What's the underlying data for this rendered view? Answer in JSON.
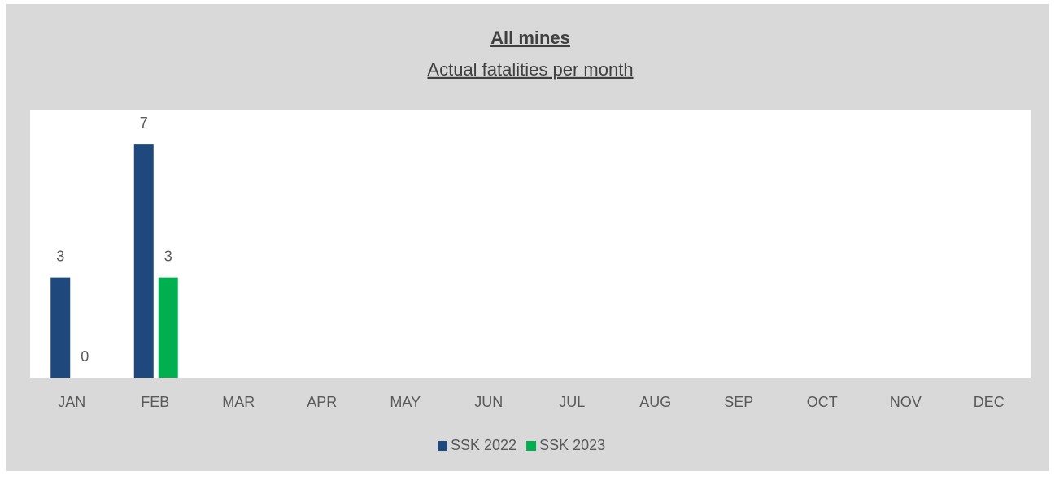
{
  "chart_data": {
    "type": "bar",
    "title": "All mines",
    "subtitle": "Actual fatalities per month",
    "categories": [
      "JAN",
      "FEB",
      "MAR",
      "APR",
      "MAY",
      "JUN",
      "JUL",
      "AUG",
      "SEP",
      "OCT",
      "NOV",
      "DEC"
    ],
    "series": [
      {
        "name": "SSK 2022",
        "color": "#1f497d",
        "values": [
          3,
          7,
          null,
          null,
          null,
          null,
          null,
          null,
          null,
          null,
          null,
          null
        ]
      },
      {
        "name": "SSK 2023",
        "color": "#00b050",
        "values": [
          0,
          3,
          null,
          null,
          null,
          null,
          null,
          null,
          null,
          null,
          null,
          null
        ]
      }
    ],
    "ylim": [
      0,
      8
    ],
    "legend": "bottom"
  }
}
